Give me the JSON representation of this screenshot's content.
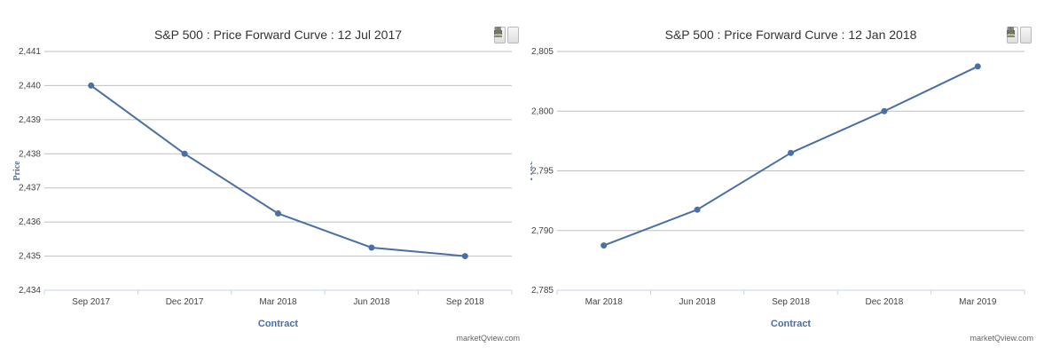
{
  "icons": {
    "print": "print-icon",
    "download": "download-icon"
  },
  "colors": {
    "line": "#4a6fa5",
    "grid": "#c0c0c0",
    "axis_title": "#4a6fa5",
    "text": "#333333"
  },
  "chart_data": [
    {
      "type": "line",
      "title": "S&P 500 : Price Forward Curve : 12 Jul 2017",
      "xlabel": "Contract",
      "ylabel": "Price",
      "categories": [
        "Sep 2017",
        "Dec 2017",
        "Mar 2018",
        "Jun 2018",
        "Sep 2018"
      ],
      "series": [
        {
          "values": [
            2440.0,
            2438.0,
            2436.25,
            2435.25,
            2435.0
          ]
        }
      ],
      "ylim": [
        2434,
        2441
      ],
      "yticks": [
        "2,434",
        "2,435",
        "2,436",
        "2,437",
        "2,438",
        "2,439",
        "2,440",
        "2,441"
      ],
      "grid": true,
      "credit": "marketQview.com"
    },
    {
      "type": "line",
      "title": "S&P 500 : Price Forward Curve : 12 Jan 2018",
      "xlabel": "Contract",
      "ylabel": "Price",
      "categories": [
        "Mar 2018",
        "Jun 2018",
        "Sep 2018",
        "Dec 2018",
        "Mar 2019"
      ],
      "series": [
        {
          "values": [
            2788.75,
            2791.75,
            2796.5,
            2800.0,
            2803.75
          ]
        }
      ],
      "ylim": [
        2785,
        2805
      ],
      "yticks": [
        "2,785",
        "2,790",
        "2,795",
        "2,800",
        "2,805"
      ],
      "grid": true,
      "credit": "marketQview.com"
    }
  ]
}
